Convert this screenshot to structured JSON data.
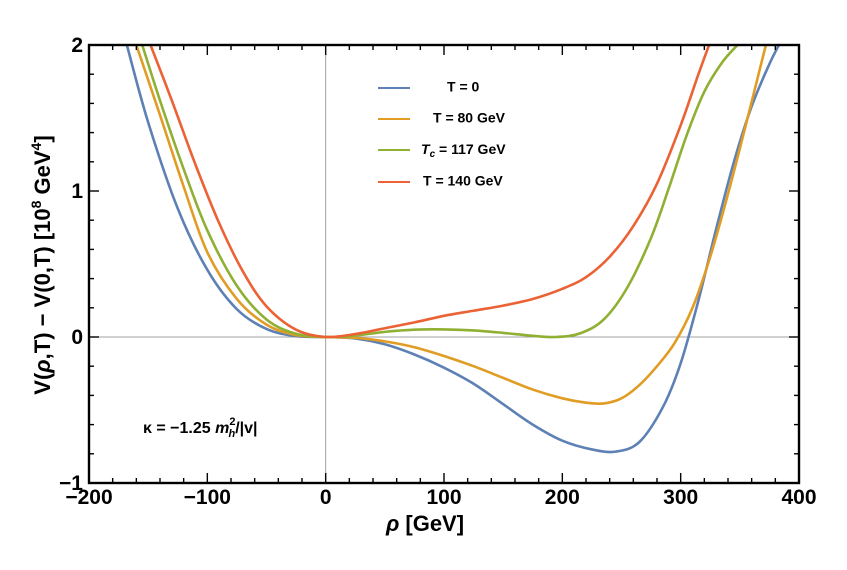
{
  "chart_data": {
    "type": "line",
    "xlim": [
      -200,
      400
    ],
    "ylim": [
      -1,
      2
    ],
    "x_ticks": [
      -200,
      -100,
      0,
      100,
      200,
      300,
      400
    ],
    "y_ticks": [
      -1,
      0,
      1,
      2
    ],
    "x_tick_labels": [
      "−200",
      "−100",
      "0",
      "100",
      "200",
      "300",
      "400"
    ],
    "y_tick_labels": [
      "−1",
      "0",
      "1",
      "2"
    ],
    "xlabel": {
      "sym": "ρ",
      "rest": " [GeV]"
    },
    "ylabel": {
      "a": "V(",
      "b": "ρ",
      "c": ",T) − V(0,T) [10",
      "d": "8",
      "e": " GeV",
      "f": "4",
      "g": "]"
    },
    "grid": false,
    "legend_position": "top-center",
    "annotation": {
      "pre": "κ = −1.25 ",
      "m": "m",
      "sup": "2",
      "sub": "h",
      "post": "/|v|"
    },
    "series": [
      {
        "name": "T = 0",
        "color": "#5e81b5",
        "x": [
          -168,
          -150,
          -125,
          -100,
          -75,
          -50,
          -25,
          0,
          25,
          50,
          75,
          100,
          125,
          150,
          175,
          200,
          225,
          245,
          265,
          285,
          300,
          315,
          330,
          345,
          360,
          375,
          383
        ],
        "y": [
          2.0,
          1.47,
          0.88,
          0.46,
          0.19,
          0.055,
          0.006,
          0.0,
          -0.01,
          -0.05,
          -0.12,
          -0.21,
          -0.32,
          -0.46,
          -0.6,
          -0.71,
          -0.77,
          -0.785,
          -0.72,
          -0.48,
          -0.18,
          0.25,
          0.74,
          1.2,
          1.58,
          1.87,
          2.0
        ]
      },
      {
        "name": "T = 80 GeV",
        "series_label": {
          "a": "T = 80 GeV"
        },
        "color": "#e19c24",
        "x": [
          -160,
          -140,
          -120,
          -100,
          -75,
          -50,
          -25,
          0,
          25,
          50,
          75,
          100,
          125,
          150,
          175,
          200,
          220,
          235,
          250,
          265,
          280,
          295,
          310,
          325,
          340,
          355,
          372
        ],
        "y": [
          2.0,
          1.52,
          1.03,
          0.58,
          0.26,
          0.085,
          0.013,
          0.0,
          -0.006,
          -0.03,
          -0.07,
          -0.13,
          -0.2,
          -0.28,
          -0.36,
          -0.42,
          -0.45,
          -0.455,
          -0.42,
          -0.33,
          -0.2,
          -0.04,
          0.2,
          0.55,
          0.98,
          1.45,
          2.0
        ]
      },
      {
        "name": "T_c = 117 GeV",
        "color": "#8fb032",
        "x": [
          -155,
          -140,
          -120,
          -100,
          -75,
          -50,
          -25,
          0,
          25,
          50,
          75,
          100,
          125,
          150,
          175,
          195,
          215,
          235,
          255,
          275,
          290,
          305,
          320,
          335,
          348
        ],
        "y": [
          2.0,
          1.62,
          1.15,
          0.73,
          0.35,
          0.12,
          0.022,
          0.0,
          0.01,
          0.035,
          0.05,
          0.052,
          0.045,
          0.028,
          0.008,
          0.0,
          0.025,
          0.12,
          0.34,
          0.68,
          1.02,
          1.38,
          1.68,
          1.88,
          2.0
        ]
      },
      {
        "name": "T = 140 GeV",
        "color": "#eb6235",
        "x": [
          -148,
          -130,
          -110,
          -90,
          -70,
          -50,
          -25,
          0,
          25,
          50,
          75,
          100,
          125,
          150,
          175,
          200,
          220,
          240,
          260,
          280,
          300,
          315,
          324
        ],
        "y": [
          2.0,
          1.62,
          1.18,
          0.78,
          0.45,
          0.21,
          0.05,
          0.0,
          0.02,
          0.06,
          0.1,
          0.145,
          0.18,
          0.215,
          0.26,
          0.33,
          0.41,
          0.55,
          0.76,
          1.05,
          1.45,
          1.8,
          2.0
        ]
      }
    ],
    "legend": [
      {
        "line_color": "#5e81b5",
        "text": "T = 0"
      },
      {
        "line_color": "#e19c24",
        "text": "T = 80 GeV"
      },
      {
        "line_color": "#8fb032",
        "text_a": "T",
        "text_b": "c",
        "text_c": " = 117 GeV"
      },
      {
        "line_color": "#eb6235",
        "text": "T = 140 GeV"
      }
    ]
  }
}
